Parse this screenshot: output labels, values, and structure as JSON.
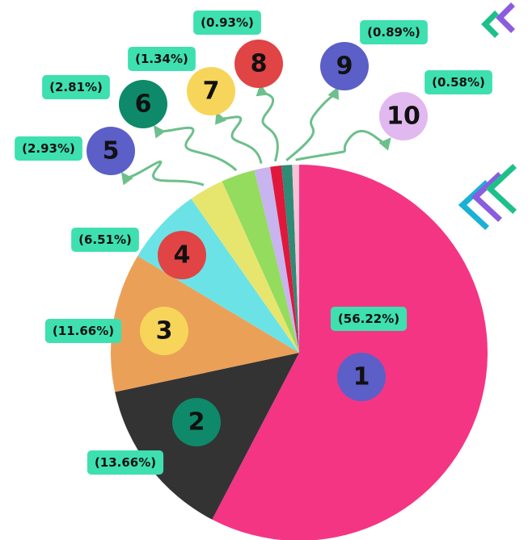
{
  "chart_data": {
    "type": "pie",
    "categories": [
      "1",
      "2",
      "3",
      "4",
      "5",
      "6",
      "7",
      "8",
      "9",
      "10"
    ],
    "values": [
      56.22,
      13.66,
      11.66,
      6.51,
      2.93,
      2.81,
      1.34,
      0.93,
      0.89,
      0.58
    ],
    "value_labels": [
      "(56.22%)",
      "(13.66%)",
      "(11.66%)",
      "(6.51%)",
      "(2.93%)",
      "(2.81%)",
      "(1.34%)",
      "(0.93%)",
      "(0.89%)",
      "(0.58%)"
    ],
    "colors": [
      "#f43584",
      "#333333",
      "#eba058",
      "#6be3e6",
      "#e6e66e",
      "#93dc5e",
      "#c8b4ef",
      "#e0183c",
      "#2e8b75",
      "#f7c3d6"
    ],
    "label_colors": [
      "#5b5fc7",
      "#0e8a6a",
      "#f7d55a",
      "#e04444",
      "#5b5fc7",
      "#0e8a6a",
      "#f7d55a",
      "#e04444",
      "#5b5fc7",
      "#e2b8f0"
    ]
  }
}
